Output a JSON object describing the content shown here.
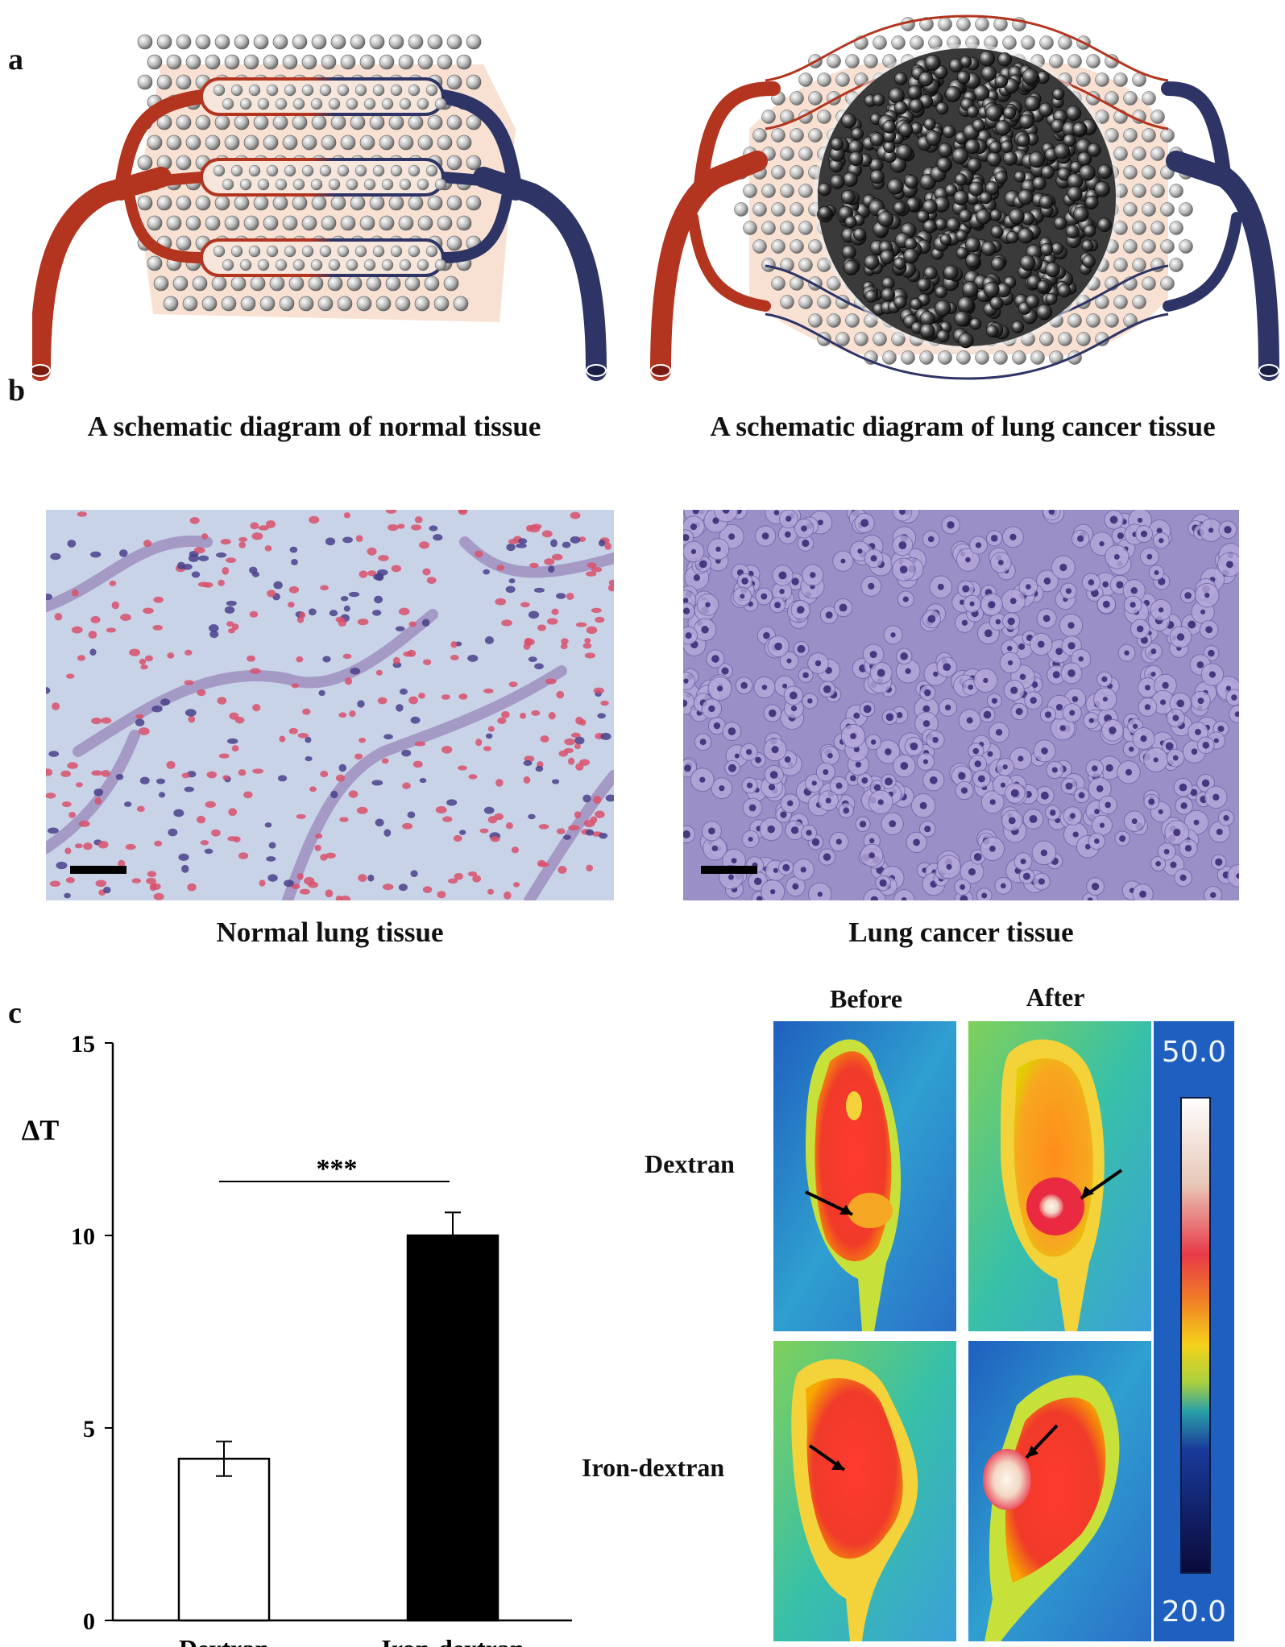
{
  "panels": {
    "a": {
      "letter": "a",
      "left_caption": "A schematic diagram of normal tissue",
      "right_caption": "A schematic diagram of  lung cancer tissue"
    },
    "b": {
      "letter": "b",
      "left_caption": "Normal lung tissue",
      "right_caption": "Lung cancer  tissue"
    },
    "c": {
      "letter": "c",
      "thermal": {
        "col_labels": [
          "Before",
          "After"
        ],
        "row_labels": [
          "Dextran",
          "Iron-dextran"
        ],
        "colorbar_max": "50.0",
        "colorbar_min": "20.0"
      }
    }
  },
  "colors": {
    "artery": "#b3341f",
    "vein": "#2e3566",
    "tissue": "#f6d9c8",
    "normal_stain": "#c8d3e8",
    "cancer_stain": "#9b8fc8"
  },
  "chart_data": {
    "type": "bar",
    "categories": [
      "Dextran",
      "Iron-dextran"
    ],
    "values": [
      4.2,
      10.0
    ],
    "errors": [
      0.45,
      0.6
    ],
    "bar_colors": [
      "#ffffff",
      "#000000"
    ],
    "ylabel": "ΔT",
    "ylim": [
      0,
      15
    ],
    "yticks": [
      0,
      5,
      10,
      15
    ],
    "significance": "***"
  }
}
